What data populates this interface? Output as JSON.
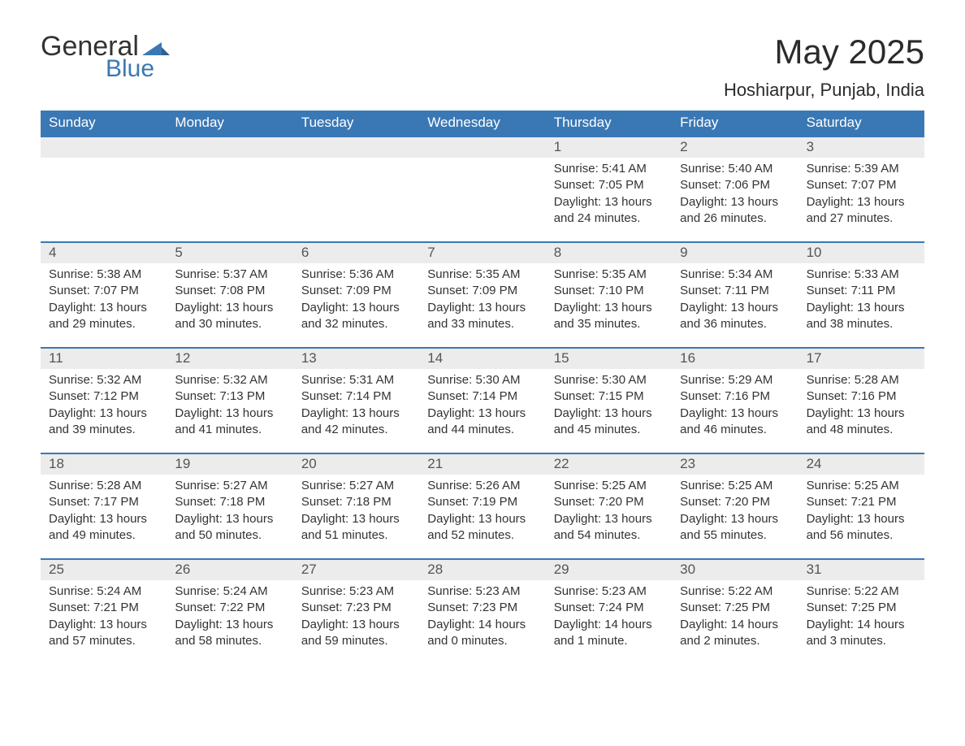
{
  "logo": {
    "text1": "General",
    "text2": "Blue"
  },
  "title": "May 2025",
  "subtitle": "Hoshiarpur, Punjab, India",
  "colors": {
    "header_bg": "#3a78b5",
    "header_text": "#ffffff",
    "daynum_bg": "#ececec",
    "daynum_text": "#555555",
    "body_bg": "#ffffff",
    "body_text": "#333333",
    "rule": "#3a78b5",
    "logo_accent": "#3a78b5"
  },
  "typography": {
    "title_fontsize": 42,
    "subtitle_fontsize": 22,
    "header_fontsize": 17,
    "daynum_fontsize": 17,
    "body_fontsize": 15,
    "font_family": "Arial"
  },
  "layout": {
    "columns": 7,
    "rows": 5,
    "leading_blanks": 4
  },
  "daynames": [
    "Sunday",
    "Monday",
    "Tuesday",
    "Wednesday",
    "Thursday",
    "Friday",
    "Saturday"
  ],
  "days": [
    {
      "n": 1,
      "sunrise": "5:41 AM",
      "sunset": "7:05 PM",
      "daylight": "13 hours and 24 minutes."
    },
    {
      "n": 2,
      "sunrise": "5:40 AM",
      "sunset": "7:06 PM",
      "daylight": "13 hours and 26 minutes."
    },
    {
      "n": 3,
      "sunrise": "5:39 AM",
      "sunset": "7:07 PM",
      "daylight": "13 hours and 27 minutes."
    },
    {
      "n": 4,
      "sunrise": "5:38 AM",
      "sunset": "7:07 PM",
      "daylight": "13 hours and 29 minutes."
    },
    {
      "n": 5,
      "sunrise": "5:37 AM",
      "sunset": "7:08 PM",
      "daylight": "13 hours and 30 minutes."
    },
    {
      "n": 6,
      "sunrise": "5:36 AM",
      "sunset": "7:09 PM",
      "daylight": "13 hours and 32 minutes."
    },
    {
      "n": 7,
      "sunrise": "5:35 AM",
      "sunset": "7:09 PM",
      "daylight": "13 hours and 33 minutes."
    },
    {
      "n": 8,
      "sunrise": "5:35 AM",
      "sunset": "7:10 PM",
      "daylight": "13 hours and 35 minutes."
    },
    {
      "n": 9,
      "sunrise": "5:34 AM",
      "sunset": "7:11 PM",
      "daylight": "13 hours and 36 minutes."
    },
    {
      "n": 10,
      "sunrise": "5:33 AM",
      "sunset": "7:11 PM",
      "daylight": "13 hours and 38 minutes."
    },
    {
      "n": 11,
      "sunrise": "5:32 AM",
      "sunset": "7:12 PM",
      "daylight": "13 hours and 39 minutes."
    },
    {
      "n": 12,
      "sunrise": "5:32 AM",
      "sunset": "7:13 PM",
      "daylight": "13 hours and 41 minutes."
    },
    {
      "n": 13,
      "sunrise": "5:31 AM",
      "sunset": "7:14 PM",
      "daylight": "13 hours and 42 minutes."
    },
    {
      "n": 14,
      "sunrise": "5:30 AM",
      "sunset": "7:14 PM",
      "daylight": "13 hours and 44 minutes."
    },
    {
      "n": 15,
      "sunrise": "5:30 AM",
      "sunset": "7:15 PM",
      "daylight": "13 hours and 45 minutes."
    },
    {
      "n": 16,
      "sunrise": "5:29 AM",
      "sunset": "7:16 PM",
      "daylight": "13 hours and 46 minutes."
    },
    {
      "n": 17,
      "sunrise": "5:28 AM",
      "sunset": "7:16 PM",
      "daylight": "13 hours and 48 minutes."
    },
    {
      "n": 18,
      "sunrise": "5:28 AM",
      "sunset": "7:17 PM",
      "daylight": "13 hours and 49 minutes."
    },
    {
      "n": 19,
      "sunrise": "5:27 AM",
      "sunset": "7:18 PM",
      "daylight": "13 hours and 50 minutes."
    },
    {
      "n": 20,
      "sunrise": "5:27 AM",
      "sunset": "7:18 PM",
      "daylight": "13 hours and 51 minutes."
    },
    {
      "n": 21,
      "sunrise": "5:26 AM",
      "sunset": "7:19 PM",
      "daylight": "13 hours and 52 minutes."
    },
    {
      "n": 22,
      "sunrise": "5:25 AM",
      "sunset": "7:20 PM",
      "daylight": "13 hours and 54 minutes."
    },
    {
      "n": 23,
      "sunrise": "5:25 AM",
      "sunset": "7:20 PM",
      "daylight": "13 hours and 55 minutes."
    },
    {
      "n": 24,
      "sunrise": "5:25 AM",
      "sunset": "7:21 PM",
      "daylight": "13 hours and 56 minutes."
    },
    {
      "n": 25,
      "sunrise": "5:24 AM",
      "sunset": "7:21 PM",
      "daylight": "13 hours and 57 minutes."
    },
    {
      "n": 26,
      "sunrise": "5:24 AM",
      "sunset": "7:22 PM",
      "daylight": "13 hours and 58 minutes."
    },
    {
      "n": 27,
      "sunrise": "5:23 AM",
      "sunset": "7:23 PM",
      "daylight": "13 hours and 59 minutes."
    },
    {
      "n": 28,
      "sunrise": "5:23 AM",
      "sunset": "7:23 PM",
      "daylight": "14 hours and 0 minutes."
    },
    {
      "n": 29,
      "sunrise": "5:23 AM",
      "sunset": "7:24 PM",
      "daylight": "14 hours and 1 minute."
    },
    {
      "n": 30,
      "sunrise": "5:22 AM",
      "sunset": "7:25 PM",
      "daylight": "14 hours and 2 minutes."
    },
    {
      "n": 31,
      "sunrise": "5:22 AM",
      "sunset": "7:25 PM",
      "daylight": "14 hours and 3 minutes."
    }
  ],
  "labels": {
    "sunrise": "Sunrise: ",
    "sunset": "Sunset: ",
    "daylight": "Daylight: "
  }
}
